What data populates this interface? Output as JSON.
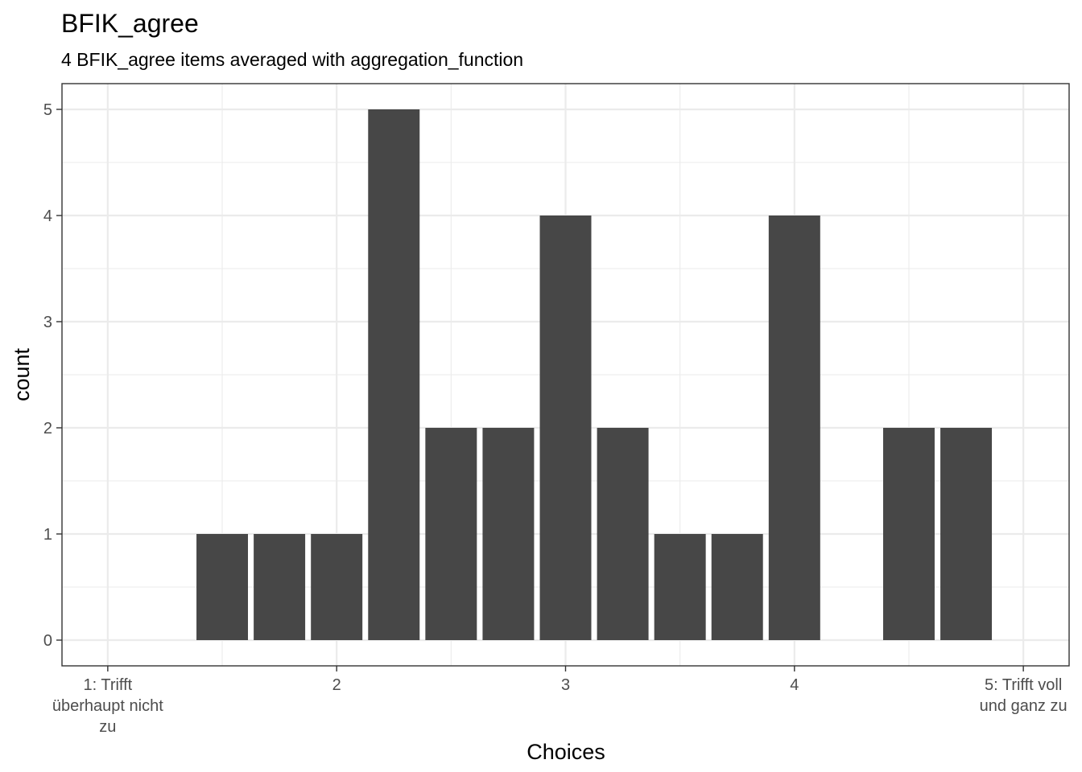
{
  "chart_data": {
    "type": "bar",
    "title": "BFIK_agree",
    "subtitle": "4 BFIK_agree items averaged with aggregation_function",
    "xlabel": "Choices",
    "ylabel": "count",
    "xlim": [
      0.8,
      5.2
    ],
    "ylim": [
      0,
      5
    ],
    "grid": true,
    "x_ticks": [
      {
        "value": 1,
        "label": [
          "1: Trifft",
          "überhaupt nicht",
          "zu"
        ]
      },
      {
        "value": 2,
        "label": [
          "2"
        ]
      },
      {
        "value": 3,
        "label": [
          "3"
        ]
      },
      {
        "value": 4,
        "label": [
          "4"
        ]
      },
      {
        "value": 5,
        "label": [
          "5: Trifft voll",
          "und ganz zu"
        ]
      }
    ],
    "y_ticks": [
      0,
      1,
      2,
      3,
      4,
      5
    ],
    "bin_width": 0.25,
    "bars": [
      {
        "x": 1.5,
        "count": 1
      },
      {
        "x": 1.75,
        "count": 1
      },
      {
        "x": 2.0,
        "count": 1
      },
      {
        "x": 2.25,
        "count": 5
      },
      {
        "x": 2.5,
        "count": 2
      },
      {
        "x": 2.75,
        "count": 2
      },
      {
        "x": 3.0,
        "count": 4
      },
      {
        "x": 3.25,
        "count": 2
      },
      {
        "x": 3.5,
        "count": 1
      },
      {
        "x": 3.75,
        "count": 1
      },
      {
        "x": 4.0,
        "count": 4
      },
      {
        "x": 4.5,
        "count": 2
      },
      {
        "x": 4.75,
        "count": 2
      }
    ],
    "colors": {
      "bar": "#474747",
      "panel_border": "#333333",
      "grid": "#ebebeb",
      "tick_text": "#4d4d4d"
    }
  }
}
